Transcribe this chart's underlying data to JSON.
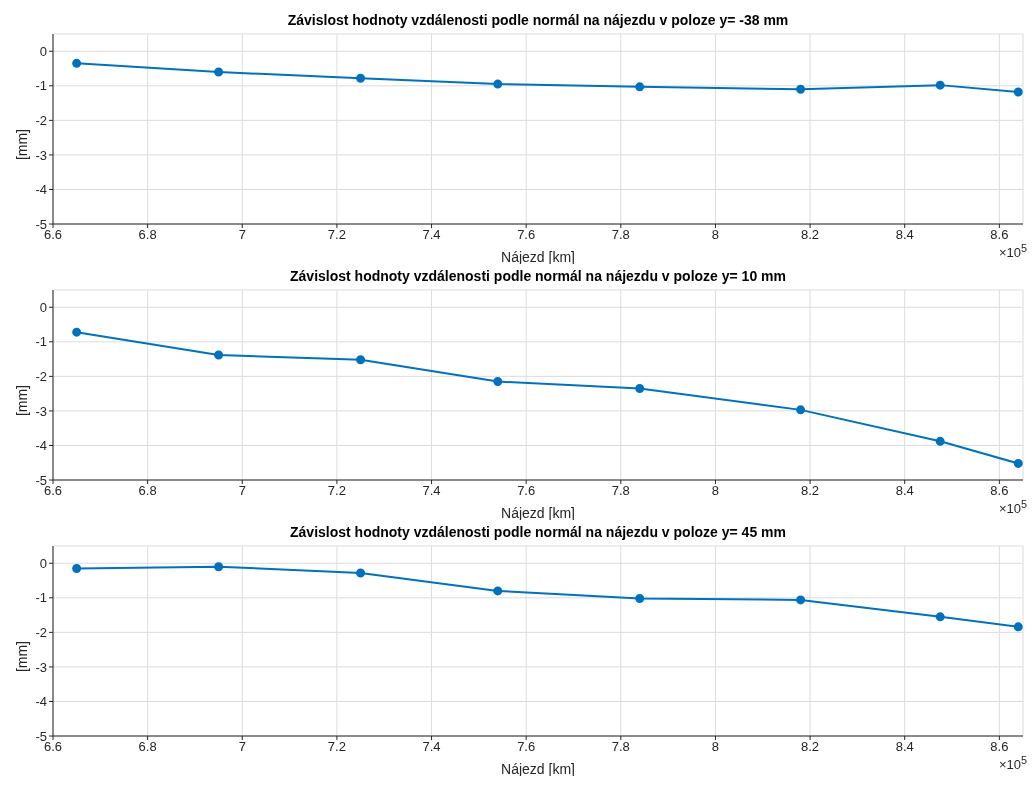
{
  "chart_data": [
    {
      "type": "line",
      "title": "Závislost hodnoty vzdálenosti podle normál na nájezdu v poloze y= -38 mm",
      "xlabel": "Nájezd [km]",
      "ylabel": "[mm]",
      "annotations": [
        "×10$^{5}$"
      ],
      "x": [
        6.65,
        6.95,
        7.25,
        7.54,
        7.84,
        8.18,
        8.475,
        8.64
      ],
      "series": [
        {
          "color": "#0072bd",
          "values": [
            -0.35,
            -0.6,
            -0.78,
            -0.95,
            -1.03,
            -1.1,
            -0.98,
            -1.18
          ]
        }
      ],
      "xlim": [
        6.6,
        8.65
      ],
      "xticks": [
        6.6,
        6.8,
        7,
        7.2,
        7.4,
        7.6,
        7.8,
        8,
        8.2,
        8.4,
        8.6
      ],
      "ylim": [
        -5,
        0.5
      ],
      "yticks": [
        -5,
        -4,
        -3,
        -2,
        -1,
        0
      ],
      "grid": true,
      "marker": "circle",
      "line_style": "solid"
    },
    {
      "type": "line",
      "title": "Závislost hodnoty vzdálenosti podle normál na nájezdu v poloze y= 10 mm",
      "xlabel": "Nájezd [km]",
      "ylabel": "[mm]",
      "annotations": [
        "×10$^{5}$"
      ],
      "x": [
        6.65,
        6.95,
        7.25,
        7.54,
        7.84,
        8.18,
        8.475,
        8.64
      ],
      "series": [
        {
          "color": "#0072bd",
          "values": [
            -0.72,
            -1.38,
            -1.52,
            -2.15,
            -2.35,
            -2.97,
            -3.88,
            -4.52
          ]
        }
      ],
      "xlim": [
        6.6,
        8.65
      ],
      "xticks": [
        6.6,
        6.8,
        7,
        7.2,
        7.4,
        7.6,
        7.8,
        8,
        8.2,
        8.4,
        8.6
      ],
      "ylim": [
        -5,
        0.5
      ],
      "yticks": [
        -5,
        -4,
        -3,
        -2,
        -1,
        0
      ],
      "grid": true,
      "marker": "circle",
      "line_style": "solid"
    },
    {
      "type": "line",
      "title": "Závislost hodnoty vzdálenosti podle normál na nájezdu v poloze y= 45 mm",
      "xlabel": "Nájezd [km]",
      "ylabel": "[mm]",
      "annotations": [
        "×10$^{5}$"
      ],
      "x": [
        6.65,
        6.95,
        7.25,
        7.54,
        7.84,
        8.18,
        8.475,
        8.64
      ],
      "series": [
        {
          "color": "#0072bd",
          "values": [
            -0.15,
            -0.1,
            -0.28,
            -0.8,
            -1.02,
            -1.06,
            -1.55,
            -1.84
          ]
        }
      ],
      "xlim": [
        6.6,
        8.65
      ],
      "xticks": [
        6.6,
        6.8,
        7,
        7.2,
        7.4,
        7.6,
        7.8,
        8,
        8.2,
        8.4,
        8.6
      ],
      "ylim": [
        -5,
        0.5
      ],
      "yticks": [
        -5,
        -4,
        -3,
        -2,
        -1,
        0
      ],
      "grid": true,
      "marker": "circle",
      "line_style": "solid"
    }
  ]
}
